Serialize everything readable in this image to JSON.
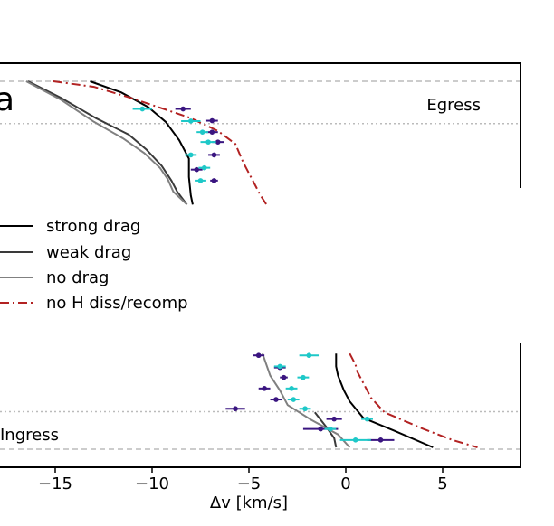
{
  "chart_data": {
    "type": "line",
    "xlabel": "Δv [km/s]",
    "panel_label": "a",
    "xlim": [
      -18,
      9
    ],
    "ylim": [
      0,
      1
    ],
    "x_ticks": [
      -15,
      -10,
      -5,
      0,
      5
    ],
    "x_tick_labels": [
      "−15",
      "−10",
      "−5",
      "0",
      "5"
    ],
    "region_labels": {
      "egress": "Egress",
      "ingress": "Ingress"
    },
    "colors": {
      "strong_drag": "#000000",
      "weak_drag": "#3a3a3a",
      "no_drag": "#808080",
      "no_h": "#b22222",
      "obs_dark": "#3a1580",
      "obs_cyan": "#1ec8c8",
      "ref_line": "#bbbbbb"
    },
    "reference_lines": {
      "dashed": [
        0.0,
        1.0
      ],
      "dotted": [
        0.102,
        0.885
      ]
    },
    "series": [
      {
        "name": "strong drag",
        "key": "strong_drag",
        "style": "solid",
        "segments": [
          [
            [
              -13.2,
              1.0
            ],
            [
              -11.6,
              0.97
            ],
            [
              -10.2,
              0.93
            ],
            [
              -9.3,
              0.89
            ],
            [
              -8.6,
              0.84
            ],
            [
              -8.1,
              0.79
            ],
            [
              -8.1,
              0.74
            ],
            [
              -8.0,
              0.69
            ],
            [
              -7.9,
              0.665
            ]
          ],
          [
            [
              -0.5,
              0.26
            ],
            [
              -0.5,
              0.225
            ],
            [
              -0.4,
              0.2
            ],
            [
              -0.1,
              0.16
            ],
            [
              0.2,
              0.13
            ],
            [
              0.9,
              0.085
            ],
            [
              2.5,
              0.05
            ],
            [
              4.5,
              0.005
            ]
          ]
        ]
      },
      {
        "name": "weak drag",
        "key": "weak_drag",
        "style": "solid",
        "segments": [
          [
            [
              -16.4,
              1.0
            ],
            [
              -14.7,
              0.955
            ],
            [
              -12.9,
              0.9
            ],
            [
              -11.2,
              0.855
            ],
            [
              -10.3,
              0.815
            ],
            [
              -9.5,
              0.77
            ],
            [
              -9.0,
              0.73
            ],
            [
              -8.7,
              0.7
            ],
            [
              -8.2,
              0.665
            ]
          ],
          [
            [
              -1.6,
              0.1
            ],
            [
              -1.0,
              0.06
            ],
            [
              -0.6,
              0.03
            ],
            [
              -0.5,
              0.005
            ]
          ]
        ]
      },
      {
        "name": "no drag",
        "key": "no_drag",
        "style": "solid",
        "segments": [
          [
            [
              -16.5,
              1.0
            ],
            [
              -14.7,
              0.95
            ],
            [
              -13.0,
              0.89
            ],
            [
              -11.5,
              0.845
            ],
            [
              -10.4,
              0.805
            ],
            [
              -9.6,
              0.765
            ],
            [
              -9.2,
              0.735
            ],
            [
              -8.9,
              0.7
            ],
            [
              -8.2,
              0.665
            ]
          ],
          [
            [
              -4.3,
              0.26
            ],
            [
              -3.9,
              0.2
            ],
            [
              -3.4,
              0.16
            ],
            [
              -3.0,
              0.12
            ],
            [
              -1.8,
              0.08
            ],
            [
              -0.4,
              0.04
            ],
            [
              0.2,
              0.005
            ]
          ]
        ]
      },
      {
        "name": "no H diss/recomp",
        "key": "no_h",
        "style": "dashdot",
        "segments": [
          [
            [
              -15.1,
              1.0
            ],
            [
              -13.0,
              0.985
            ],
            [
              -11.1,
              0.955
            ],
            [
              -9.4,
              0.925
            ],
            [
              -8.0,
              0.9
            ],
            [
              -6.6,
              0.865
            ],
            [
              -5.7,
              0.83
            ],
            [
              -5.3,
              0.78
            ],
            [
              -4.8,
              0.73
            ],
            [
              -4.4,
              0.69
            ],
            [
              -4.1,
              0.665
            ]
          ],
          [
            [
              0.2,
              0.26
            ],
            [
              0.5,
              0.23
            ],
            [
              0.6,
              0.21
            ],
            [
              0.9,
              0.18
            ],
            [
              1.3,
              0.14
            ],
            [
              2.0,
              0.1
            ],
            [
              4.0,
              0.055
            ],
            [
              5.5,
              0.025
            ],
            [
              6.8,
              0.005
            ]
          ]
        ]
      }
    ],
    "observations": [
      {
        "name": "obs dark",
        "key": "obs_dark",
        "points": [
          {
            "x": -8.4,
            "y": 0.925,
            "xerr": 0.4
          },
          {
            "x": -6.9,
            "y": 0.893,
            "xerr": 0.3
          },
          {
            "x": -6.9,
            "y": 0.862,
            "xerr": 0.3
          },
          {
            "x": -6.6,
            "y": 0.835,
            "xerr": 0.3
          },
          {
            "x": -6.8,
            "y": 0.8,
            "xerr": 0.3
          },
          {
            "x": -7.7,
            "y": 0.76,
            "xerr": 0.3
          },
          {
            "x": -6.8,
            "y": 0.73,
            "xerr": 0.2
          },
          {
            "x": -4.5,
            "y": 0.255,
            "xerr": 0.3
          },
          {
            "x": -3.4,
            "y": 0.222,
            "xerr": 0.3
          },
          {
            "x": -3.2,
            "y": 0.195,
            "xerr": 0.2
          },
          {
            "x": -4.2,
            "y": 0.165,
            "xerr": 0.3
          },
          {
            "x": -3.6,
            "y": 0.135,
            "xerr": 0.3
          },
          {
            "x": -5.7,
            "y": 0.11,
            "xerr": 0.5
          },
          {
            "x": -0.6,
            "y": 0.082,
            "xerr": 0.4
          },
          {
            "x": -1.3,
            "y": 0.055,
            "xerr": 0.9
          },
          {
            "x": 1.8,
            "y": 0.025,
            "xerr": 0.7
          }
        ]
      },
      {
        "name": "obs cyan",
        "key": "obs_cyan",
        "points": [
          {
            "x": -10.5,
            "y": 0.925,
            "xerr": 0.5
          },
          {
            "x": -8.0,
            "y": 0.892,
            "xerr": 0.5
          },
          {
            "x": -7.4,
            "y": 0.862,
            "xerr": 0.3
          },
          {
            "x": -7.1,
            "y": 0.835,
            "xerr": 0.4
          },
          {
            "x": -8.0,
            "y": 0.8,
            "xerr": 0.3
          },
          {
            "x": -7.3,
            "y": 0.765,
            "xerr": 0.3
          },
          {
            "x": -7.5,
            "y": 0.73,
            "xerr": 0.3
          },
          {
            "x": -1.9,
            "y": 0.255,
            "xerr": 0.5
          },
          {
            "x": -3.4,
            "y": 0.225,
            "xerr": 0.3
          },
          {
            "x": -2.2,
            "y": 0.195,
            "xerr": 0.3
          },
          {
            "x": -2.8,
            "y": 0.165,
            "xerr": 0.3
          },
          {
            "x": -2.7,
            "y": 0.135,
            "xerr": 0.3
          },
          {
            "x": -2.1,
            "y": 0.11,
            "xerr": 0.3
          },
          {
            "x": 1.1,
            "y": 0.082,
            "xerr": 0.3
          },
          {
            "x": -0.8,
            "y": 0.055,
            "xerr": 0.3
          },
          {
            "x": 0.5,
            "y": 0.025,
            "xerr": 0.8
          }
        ]
      }
    ],
    "legend": {
      "placement": "left-middle",
      "entries": [
        {
          "label": "strong drag",
          "key": "strong_drag",
          "style": "solid"
        },
        {
          "label": "weak drag",
          "key": "weak_drag",
          "style": "solid"
        },
        {
          "label": "no drag",
          "key": "no_drag",
          "style": "solid"
        },
        {
          "label": "no H diss/recomp",
          "key": "no_h",
          "style": "dashdot"
        }
      ]
    }
  }
}
